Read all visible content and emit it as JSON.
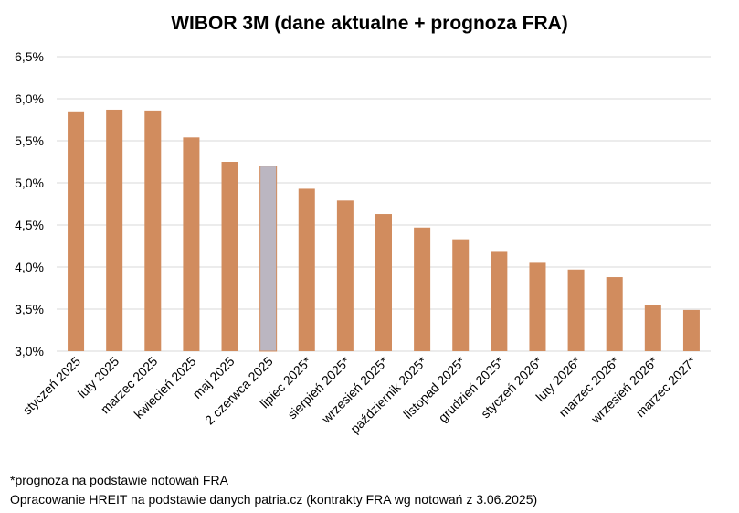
{
  "chart_data": {
    "type": "bar",
    "title": "WIBOR 3M (dane aktualne + prognoza FRA)",
    "categories": [
      "styczeń 2025",
      "luty 2025",
      "marzec 2025",
      "kwiecień 2025",
      "maj 2025",
      "2 czerwca 2025",
      "lipiec 2025*",
      "sierpień 2025*",
      "wrzesień 2025*",
      "październik 2025*",
      "listopad 2025*",
      "grudzień 2025*",
      "styczeń 2026*",
      "luty 2026*",
      "marzec 2026*",
      "wrzesień 2026*",
      "marzec 2027*"
    ],
    "values": [
      5.85,
      5.87,
      5.86,
      5.54,
      5.25,
      5.2,
      4.93,
      4.79,
      4.63,
      4.47,
      4.33,
      4.18,
      4.05,
      3.97,
      3.88,
      3.55,
      3.49
    ],
    "highlight_index": 5,
    "ylim": [
      3.0,
      6.5
    ],
    "yticks": [
      3.0,
      3.5,
      4.0,
      4.5,
      5.0,
      5.5,
      6.0,
      6.5
    ],
    "ytick_labels": [
      "3,0%",
      "3,5%",
      "4,0%",
      "4,5%",
      "5,0%",
      "5,5%",
      "6,0%",
      "6,5%"
    ],
    "grid": true,
    "legend": "none",
    "colors": {
      "bar": "#D18C5E",
      "highlight": "#BBB6C1",
      "grid": "#D9D9D9"
    }
  },
  "footnotes": [
    "*prognoza na podstawie notowań FRA",
    "Opracowanie HREIT na podstawie danych patria.cz (kontrakty FRA wg notowań z 3.06.2025)"
  ]
}
